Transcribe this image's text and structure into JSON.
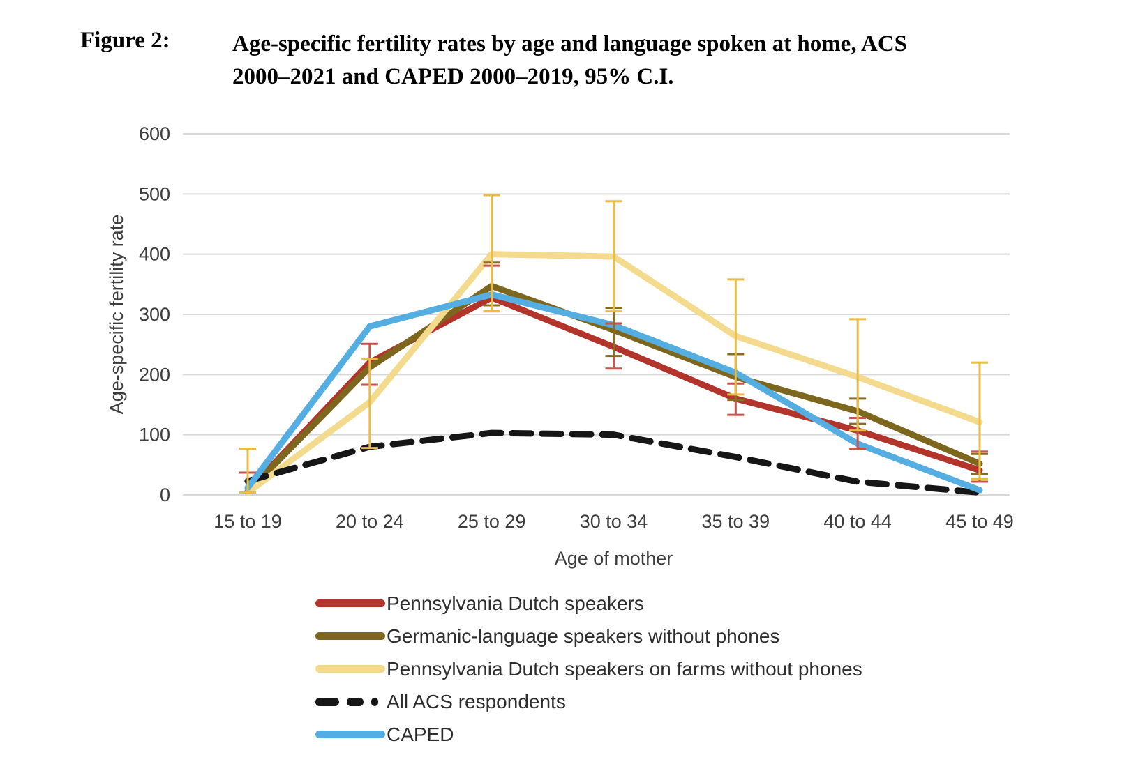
{
  "figure": {
    "label": "Figure 2:",
    "title_line1": "Age-specific fertility rates by age and language spoken at home, ACS",
    "title_line2": "2000–2021 and CAPED 2000–2019, 95% C.I."
  },
  "chart_data": {
    "type": "line",
    "title": "Age-specific fertility rates by age and language spoken at home, ACS 2000–2021 and CAPED 2000–2019, 95% C.I.",
    "xlabel": "Age of mother",
    "ylabel": "Age-specific fertility rate",
    "ylim": [
      0,
      600
    ],
    "yticks": [
      0,
      100,
      200,
      300,
      400,
      500,
      600
    ],
    "grid": "horizontal",
    "legend_position": "bottom-left",
    "categories": [
      "15 to 19",
      "20 to 24",
      "25 to 29",
      "30 to 34",
      "35 to 39",
      "40 to 44",
      "45 to 49"
    ],
    "series": [
      {
        "name": "Pennsylvania Dutch speakers",
        "color": "#b2342a",
        "ci_color": "#c4554e",
        "style": "solid",
        "values": [
          6,
          220,
          328,
          246,
          160,
          107,
          41
        ],
        "ci": [
          [
            4,
            37
          ],
          [
            183,
            251
          ],
          [
            305,
            381
          ],
          [
            210,
            285
          ],
          [
            133,
            185
          ],
          [
            77,
            128
          ],
          [
            22,
            72
          ]
        ]
      },
      {
        "name": "Germanic-language speakers without phones",
        "color": "#7d671f",
        "ci_color": "#8a6d24",
        "style": "solid",
        "values": [
          5,
          212,
          347,
          274,
          196,
          139,
          52
        ],
        "ci": [
          null,
          null,
          [
            315,
            386
          ],
          [
            231,
            311
          ],
          [
            158,
            234
          ],
          [
            118,
            160
          ],
          [
            35,
            68
          ]
        ]
      },
      {
        "name": "Pennsylvania Dutch speakers on farms without phones",
        "color": "#f3da8c",
        "ci_color": "#e9bc45",
        "style": "solid",
        "values": [
          4,
          154,
          400,
          396,
          264,
          196,
          121
        ],
        "ci": [
          [
            4,
            77
          ],
          [
            78,
            226
          ],
          [
            306,
            498
          ],
          [
            305,
            488
          ],
          [
            167,
            358
          ],
          [
            107,
            292
          ],
          [
            26,
            220
          ]
        ]
      },
      {
        "name": "All ACS respondents",
        "color": "#161616",
        "ci_color": null,
        "style": "dashed",
        "values": [
          23,
          80,
          103,
          100,
          63,
          22,
          4
        ],
        "ci": null
      },
      {
        "name": "CAPED",
        "color": "#54aee2",
        "ci_color": null,
        "style": "solid",
        "values": [
          12,
          280,
          333,
          282,
          203,
          85,
          8
        ],
        "ci": null
      }
    ]
  }
}
